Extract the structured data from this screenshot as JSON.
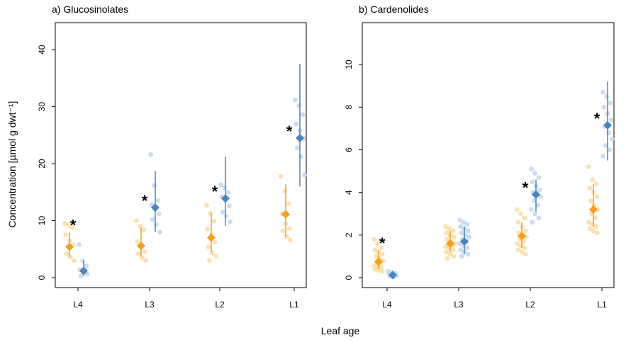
{
  "figure": {
    "ylabel": "Concentration [µmol g dwt⁻¹]",
    "xlabel": "Leaf age"
  },
  "colors": {
    "orange": "#F2A023",
    "orange_point": "#FBD9A0",
    "blue": "#4A84BA",
    "blue_point": "#BFD4EA"
  },
  "chart_data": [
    {
      "type": "scatter",
      "title": "a) Glucosinolates",
      "categories": [
        "L4",
        "L3",
        "L2",
        "L1"
      ],
      "ylim": [
        0,
        43
      ],
      "yticks": [
        0,
        10,
        20,
        30,
        40
      ],
      "grid": false,
      "significance": [
        true,
        true,
        true,
        true
      ],
      "series": [
        {
          "color_key": "orange",
          "mean": [
            5.4,
            5.6,
            7.0,
            11.1
          ],
          "lower": [
            3.6,
            3.7,
            4.5,
            7.2
          ],
          "upper": [
            8.0,
            8.8,
            11.3,
            16.4
          ],
          "points": [
            [
              9.5,
              9.3,
              8.8,
              7.5,
              6.5,
              5.8,
              4.2,
              3.6,
              3.0
            ],
            [
              10.0,
              9.0,
              8.4,
              6.3,
              5.2,
              4.6,
              4.2,
              3.5,
              3.0
            ],
            [
              12.7,
              11.3,
              9.9,
              8.5,
              7.5,
              6.2,
              5.4,
              4.4,
              3.8,
              3.0
            ],
            [
              17.8,
              15.2,
              13.0,
              11.2,
              9.5,
              8.6,
              8.2,
              7.2,
              6.6
            ]
          ]
        },
        {
          "color_key": "blue",
          "mean": [
            1.2,
            12.3,
            13.9,
            24.5
          ],
          "lower": [
            0.3,
            8.0,
            9.1,
            16.0
          ],
          "upper": [
            3.0,
            18.7,
            21.2,
            37.5
          ],
          "points": [
            [
              5.8,
              3.0,
              2.1,
              1.4,
              1.0,
              0.6,
              0.3
            ],
            [
              21.6,
              16.2,
              13.5,
              12.8,
              12.0,
              11.2,
              10.2,
              9.3,
              8.0
            ],
            [
              16.3,
              15.8,
              15.0,
              14.2,
              13.6,
              12.6,
              11.5,
              10.8,
              9.8
            ],
            [
              31.2,
              30.2,
              28.6,
              27.0,
              25.8,
              24.4,
              22.8,
              21.2,
              18.0
            ]
          ]
        }
      ]
    },
    {
      "type": "scatter",
      "title": "b) Cardenolides",
      "categories": [
        "L4",
        "L3",
        "L2",
        "L1"
      ],
      "ylim": [
        0,
        11.5
      ],
      "yticks": [
        0,
        2,
        4,
        6,
        8,
        10
      ],
      "grid": false,
      "significance": [
        true,
        false,
        true,
        true
      ],
      "series": [
        {
          "color_key": "orange",
          "mean": [
            0.75,
            1.6,
            1.95,
            3.2
          ],
          "lower": [
            0.4,
            1.2,
            1.4,
            2.4
          ],
          "upper": [
            1.3,
            2.2,
            2.6,
            4.4
          ],
          "points": [
            [
              1.8,
              1.6,
              1.4,
              1.3,
              1.2,
              1.1,
              1.0,
              0.9,
              0.8,
              0.7,
              0.6,
              0.55,
              0.5,
              0.45,
              0.4,
              0.35,
              0.3
            ],
            [
              2.4,
              2.3,
              2.2,
              2.1,
              2.0,
              1.9,
              1.8,
              1.7,
              1.6,
              1.55,
              1.5,
              1.45,
              1.4,
              1.3,
              1.2,
              1.1,
              1.0,
              0.9
            ],
            [
              3.2,
              3.0,
              2.8,
              2.6,
              2.4,
              2.2,
              2.1,
              2.0,
              1.9,
              1.8,
              1.7,
              1.6,
              1.5,
              1.4,
              1.3,
              1.2,
              1.1
            ],
            [
              5.2,
              4.6,
              4.4,
              4.2,
              4.0,
              3.8,
              3.6,
              3.4,
              3.2,
              3.0,
              2.8,
              2.6,
              2.5,
              2.4,
              2.3,
              2.2,
              2.1
            ]
          ]
        },
        {
          "color_key": "blue",
          "mean": [
            0.12,
            1.7,
            3.9,
            7.15
          ],
          "lower": [
            0.03,
            1.1,
            3.1,
            5.5
          ],
          "upper": [
            0.2,
            2.4,
            4.6,
            9.2
          ],
          "points": [
            [
              0.3,
              0.25,
              0.2,
              0.15,
              0.12,
              0.1,
              0.08,
              0.05
            ],
            [
              2.7,
              2.6,
              2.5,
              2.4,
              2.3,
              2.2,
              2.1,
              2.0,
              1.9,
              1.8,
              1.7,
              1.6,
              1.5,
              1.4,
              1.3,
              1.2,
              1.1,
              1.0
            ],
            [
              5.1,
              4.9,
              4.7,
              4.5,
              4.3,
              4.1,
              4.0,
              3.9,
              3.8,
              3.6,
              3.4,
              3.2,
              3.0,
              2.8,
              2.6
            ],
            [
              8.7,
              8.5,
              8.2,
              8.0,
              7.7,
              7.4,
              7.1,
              6.8,
              6.5,
              6.2,
              6.0,
              5.7
            ]
          ]
        }
      ]
    }
  ]
}
